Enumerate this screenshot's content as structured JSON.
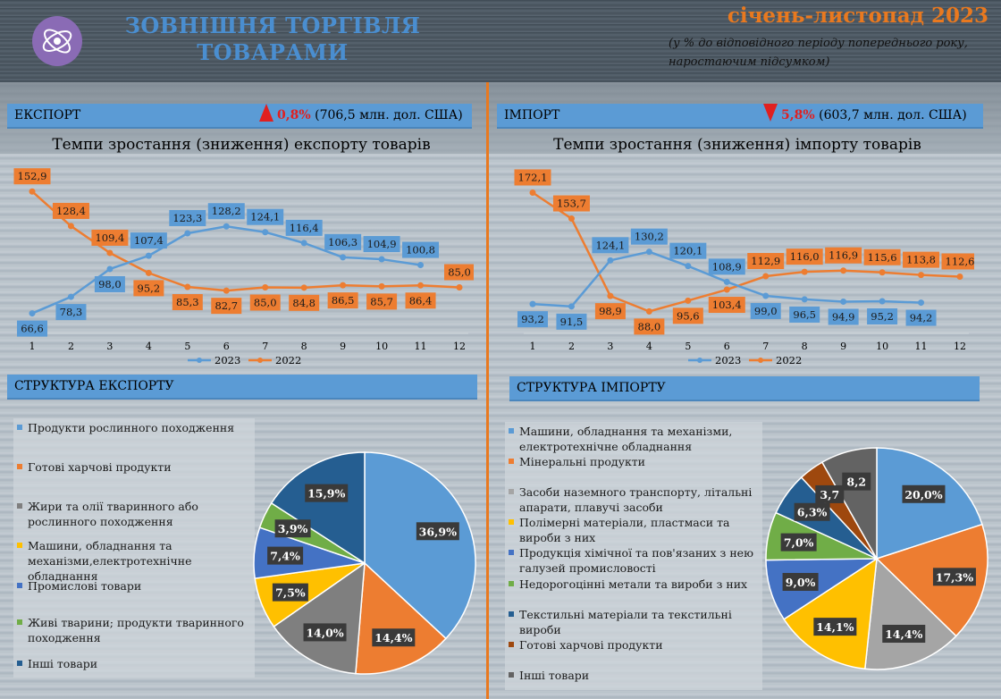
{
  "header": {
    "title": "ЗОВНІШНЯ ТОРГІВЛЯ ТОВАРАМИ",
    "period": "січень-листопад 2023",
    "subtitle": "(у % до відповідного періоду попереднього року, наростаючим підсумком)"
  },
  "colors": {
    "series_2023": "#5b9bd5",
    "series_2022": "#ed7d31",
    "band": "#5b9bd5",
    "divider": "#e9791f",
    "increase": "#e02020",
    "decrease": "#e02020"
  },
  "export": {
    "band_label": "ЕКСПОРТ",
    "change_pct": "0,8%",
    "change_direction": "up",
    "change_value": "(706,5 млн. дол. США)",
    "structure_label": "СТРУКТУРА ЕКСПОРТУ"
  },
  "import": {
    "band_label": "ІМПОРТ",
    "change_pct": "5,8%",
    "change_direction": "down",
    "change_value": "(603,7 млн. дол. США)",
    "structure_label": "СТРУКТУРА  ІМПОРТУ"
  },
  "chart_data": [
    {
      "id": "export_growth",
      "type": "line",
      "title": "Темпи зростання (зниження) експорту товарів",
      "x": [
        1,
        2,
        3,
        4,
        5,
        6,
        7,
        8,
        9,
        10,
        11,
        12
      ],
      "ylim": [
        60,
        160
      ],
      "grid": false,
      "legend_position": "bottom",
      "series": [
        {
          "name": "2023",
          "color": "#5b9bd5",
          "values": [
            66.6,
            78.3,
            98.0,
            107.4,
            123.3,
            128.2,
            124.1,
            116.4,
            106.3,
            104.9,
            100.8,
            null
          ],
          "labels": [
            "66,6",
            "78,3",
            "98,0",
            "107,4",
            "123,3",
            "128,2",
            "124,1",
            "116,4",
            "106,3",
            "104,9",
            "100,8",
            ""
          ]
        },
        {
          "name": "2022",
          "color": "#ed7d31",
          "values": [
            152.9,
            128.4,
            109.4,
            95.2,
            85.3,
            82.7,
            85.0,
            84.8,
            86.5,
            85.7,
            86.4,
            85.0
          ],
          "labels": [
            "152,9",
            "128,4",
            "109,4",
            "95,2",
            "85,3",
            "82,7",
            "85,0",
            "84,8",
            "86,5",
            "85,7",
            "86,4",
            "85,0"
          ]
        }
      ]
    },
    {
      "id": "import_growth",
      "type": "line",
      "title": "Темпи зростання (зниження) імпорту товарів",
      "x": [
        1,
        2,
        3,
        4,
        5,
        6,
        7,
        8,
        9,
        10,
        11,
        12
      ],
      "ylim": [
        80,
        180
      ],
      "grid": false,
      "legend_position": "bottom",
      "series": [
        {
          "name": "2023",
          "color": "#5b9bd5",
          "values": [
            93.2,
            91.5,
            124.1,
            130.2,
            120.1,
            108.9,
            99.0,
            96.5,
            94.9,
            95.2,
            94.2,
            null
          ],
          "labels": [
            "93,2",
            "91,5",
            "124,1",
            "130,2",
            "120,1",
            "108,9",
            "99,0",
            "96,5",
            "94,9",
            "95,2",
            "94,2",
            ""
          ]
        },
        {
          "name": "2022",
          "color": "#ed7d31",
          "values": [
            172.1,
            153.7,
            98.9,
            88.0,
            95.6,
            103.4,
            112.9,
            116.0,
            116.9,
            115.6,
            113.8,
            112.6
          ],
          "labels": [
            "172,1",
            "153,7",
            "98,9",
            "88,0",
            "95,6",
            "103,4",
            "112,9",
            "116,0",
            "116,9",
            "115,6",
            "113,8",
            "112,6"
          ]
        }
      ]
    },
    {
      "id": "export_structure",
      "type": "pie",
      "title": "",
      "legend_position": "left",
      "slices": [
        {
          "name": "Продукти рослинного походження",
          "value": 36.9,
          "label": "36,9%",
          "color": "#5b9bd5"
        },
        {
          "name": "Готові харчові продукти",
          "value": 14.4,
          "label": "14,4%",
          "color": "#ed7d31"
        },
        {
          "name": "Жири та олії тваринного або рослинного походження",
          "value": 14.0,
          "label": "14,0%",
          "color": "#7f7f7f"
        },
        {
          "name": "Машини, обладнання та механізми,електротехнічне обладнання",
          "value": 7.5,
          "label": "7,5%",
          "color": "#ffc000"
        },
        {
          "name": "Промислові товари",
          "value": 7.4,
          "label": "7,4%",
          "color": "#4472c4"
        },
        {
          "name": "Живі тварини; продукти тваринного походження",
          "value": 3.9,
          "label": "3,9%",
          "color": "#70ad47"
        },
        {
          "name": "Інші товари",
          "value": 15.9,
          "label": "15,9%",
          "color": "#255e91"
        }
      ]
    },
    {
      "id": "import_structure",
      "type": "pie",
      "title": "",
      "legend_position": "left",
      "slices": [
        {
          "name": "Машини, обладнання та механізми, електротехнічне обладнання",
          "value": 20.0,
          "label": "20,0%",
          "color": "#5b9bd5"
        },
        {
          "name": "Мінеральні продукти",
          "value": 17.3,
          "label": "17,3%",
          "color": "#ed7d31"
        },
        {
          "name": "Засоби наземного транспорту, літальні апарати, плавучі засоби",
          "value": 14.4,
          "label": "14,4%",
          "color": "#a5a5a5"
        },
        {
          "name": "Полімерні матеріали, пластмаси та вироби з них",
          "value": 14.1,
          "label": "14,1%",
          "color": "#ffc000"
        },
        {
          "name": "Продукція хімічної та пов'язаних з нею галузей промисловості",
          "value": 9.0,
          "label": "9,0%",
          "color": "#4472c4"
        },
        {
          "name": "Недорогоцінні метали та вироби з них",
          "value": 7.0,
          "label": "7,0%",
          "color": "#70ad47"
        },
        {
          "name": "Текстильні матеріали та текстильні вироби",
          "value": 6.3,
          "label": "6,3%",
          "color": "#255e91"
        },
        {
          "name": "Готові харчові продукти",
          "value": 3.7,
          "label": "3,7",
          "color": "#9e480e"
        },
        {
          "name": "Інші товари",
          "value": 8.2,
          "label": "8,2",
          "color": "#636363"
        }
      ]
    }
  ]
}
